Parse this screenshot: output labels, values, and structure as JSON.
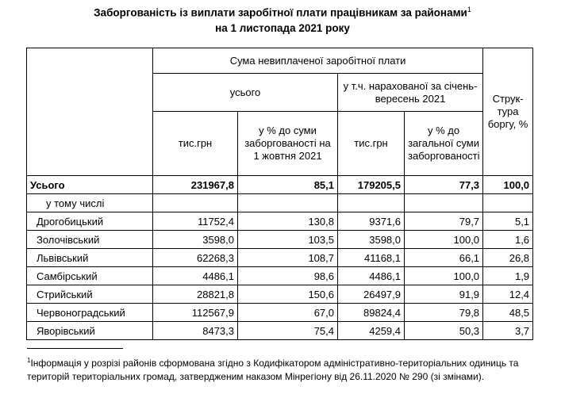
{
  "title": {
    "line1": "Заборгованість із виплати заробітної плати працівникам  за районами",
    "sup": "1",
    "line2": "на 1 листопада 2021 року"
  },
  "header": {
    "group": "Сума невиплаченої заробітної плати",
    "total": "усього",
    "accrued": "у т.ч. нарахованої за січень-вересень 2021",
    "structure": "Струк-тура боргу, %",
    "col_thousand_1": "тис.грн",
    "col_pct_1": "у % до суми заборгованості на 1 жовтня 2021",
    "col_thousand_2": "тис.грн",
    "col_pct_2": "у % до загальної суми заборгованості"
  },
  "total_row": {
    "name": "Усього",
    "v1": "231967,8",
    "v2": "85,1",
    "v3": "179205,5",
    "v4": "77,3",
    "v5": "100,0"
  },
  "sub_label": "у тому числі",
  "rows": [
    {
      "name": "Дрогобицький",
      "v1": "11752,4",
      "v2": "130,8",
      "v3": "9371,6",
      "v4": "79,7",
      "v5": "5,1"
    },
    {
      "name": "Золочівський",
      "v1": "3598,0",
      "v2": "103,5",
      "v3": "3598,0",
      "v4": "100,0",
      "v5": "1,6"
    },
    {
      "name": "Львівський",
      "v1": "62268,3",
      "v2": "108,7",
      "v3": "41168,1",
      "v4": "66,1",
      "v5": "26,8"
    },
    {
      "name": "Самбірський",
      "v1": "4486,1",
      "v2": "98,6",
      "v3": "4486,1",
      "v4": "100,0",
      "v5": "1,9"
    },
    {
      "name": "Стрийський",
      "v1": "28821,8",
      "v2": "150,6",
      "v3": "26497,9",
      "v4": "91,9",
      "v5": "12,4"
    },
    {
      "name": "Червоноградський",
      "v1": "112567,9",
      "v2": "67,0",
      "v3": "89824,4",
      "v4": "79,8",
      "v5": "48,5"
    },
    {
      "name": "Яворівський",
      "v1": "8473,3",
      "v2": "75,4",
      "v3": "4259,4",
      "v4": "50,3",
      "v5": "3,7"
    }
  ],
  "footnote": {
    "sup": "1",
    "text": "Інформація у розрізі районів сформована згідно з Кодифікатором адміністративно-територіальних одиниць та територій територіальних громад, затвердженим наказом Мінрегіону від 26.11.2020  № 290 (зі змінами)."
  }
}
